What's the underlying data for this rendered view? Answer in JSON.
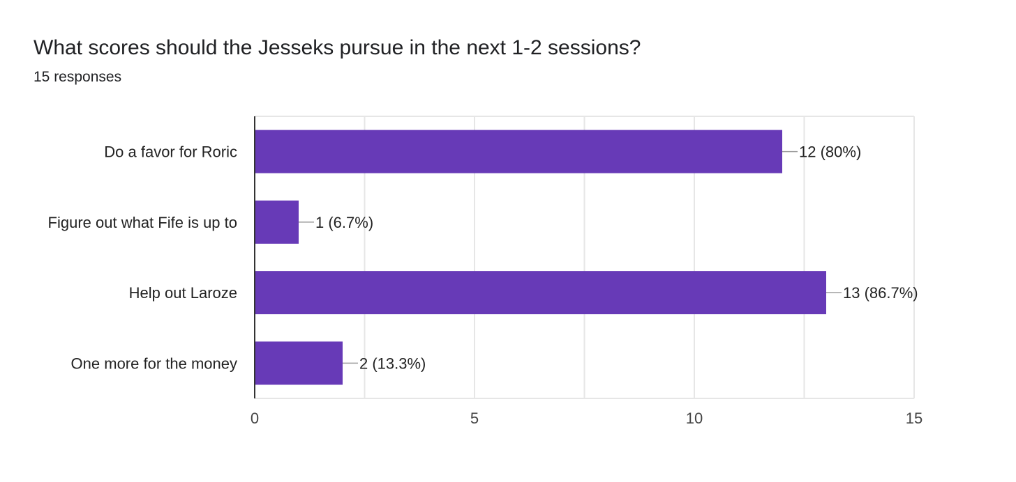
{
  "question": {
    "title": "What scores should the Jesseks pursue in the next 1-2 sessions?",
    "responses": "15 responses"
  },
  "colors": {
    "bar": "#673ab7",
    "grid": "#e6e6e6",
    "axis": "#333333",
    "leader": "#9e9e9e"
  },
  "chart_data": {
    "type": "bar",
    "orientation": "horizontal",
    "title": "",
    "xlabel": "",
    "ylabel": "",
    "xlim": [
      0,
      15
    ],
    "x_ticks": [
      0,
      5,
      10,
      15
    ],
    "grid": true,
    "legend": "none",
    "categories": [
      "Do a favor for Roric",
      "Figure out what Fife is up to",
      "Help out Laroze",
      "One more for the money"
    ],
    "values": [
      12,
      1,
      13,
      2
    ],
    "data_labels": [
      "12 (80%)",
      "1 (6.7%)",
      "13 (86.7%)",
      "2 (13.3%)"
    ]
  }
}
